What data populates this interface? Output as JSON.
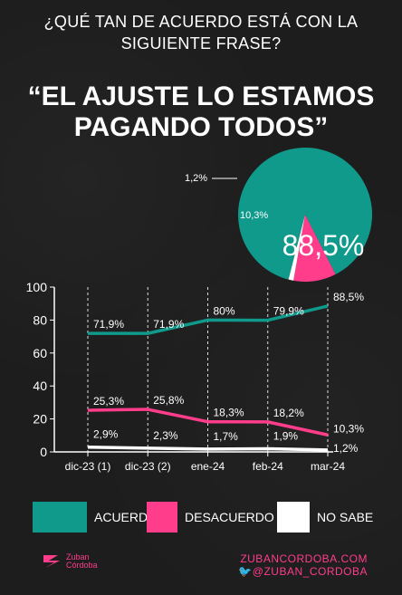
{
  "header": {
    "question_line1": "¿QUÉ TAN DE ACUERDO ESTÁ CON LA",
    "question_line2": "SIGUIENTE FRASE?",
    "quote_line1": "“EL AJUSTE LO ESTAMOS",
    "quote_line2": "PAGANDO TODOS”"
  },
  "chart_data": [
    {
      "type": "pie",
      "slices": [
        {
          "name": "ACUERDO",
          "value": 88.5,
          "label": "88,5%",
          "color": "#0f9a8b"
        },
        {
          "name": "DESACUERDO",
          "value": 10.3,
          "label": "10,3%",
          "color": "#ff3d8b"
        },
        {
          "name": "NO SABE",
          "value": 1.2,
          "label": "1,2%",
          "color": "#ffffff"
        }
      ]
    },
    {
      "type": "line",
      "categories": [
        "dic-23 (1)",
        "dic-23 (2)",
        "ene-24",
        "feb-24",
        "mar-24"
      ],
      "ylim": [
        0,
        100
      ],
      "yticks": [
        0,
        20,
        40,
        60,
        80,
        100
      ],
      "series": [
        {
          "name": "ACUERDO",
          "color": "#0f9a8b",
          "values": [
            71.9,
            71.9,
            80,
            79.9,
            88.5
          ],
          "labels": [
            "71,9%",
            "71,9%",
            "80%",
            "79,9%",
            "88,5%"
          ]
        },
        {
          "name": "DESACUERDO",
          "color": "#ff3d8b",
          "values": [
            25.3,
            25.8,
            18.3,
            18.2,
            10.3
          ],
          "labels": [
            "25,3%",
            "25,8%",
            "18,3%",
            "18,2%",
            "10,3%"
          ]
        },
        {
          "name": "NO SABE",
          "color": "#ffffff",
          "values": [
            2.9,
            2.3,
            1.7,
            1.9,
            1.2
          ],
          "labels": [
            "2,9%",
            "2,3%",
            "1,7%",
            "1,9%",
            "1,2%"
          ]
        }
      ]
    }
  ],
  "legend": [
    {
      "label": "ACUERDO",
      "color": "#0f9a8b"
    },
    {
      "label": "DESACUERDO",
      "color": "#ff3d8b"
    },
    {
      "label": "NO SABE",
      "color": "#ffffff"
    }
  ],
  "footer": {
    "brand_line1": "Zuban",
    "brand_line2": "Córdoba",
    "website": "ZUBANCORDOBA.COM",
    "twitter": "@ZUBAN_CORDOBA"
  }
}
